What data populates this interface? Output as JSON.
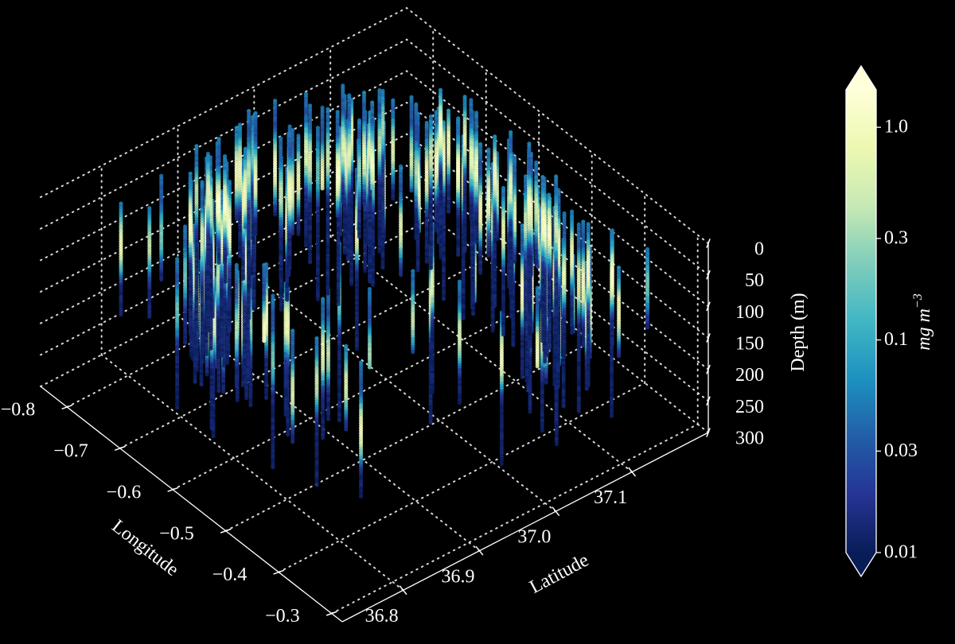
{
  "chart_data": {
    "type": "scatter",
    "projection": "3d",
    "x": {
      "label": "Longitude",
      "range": [
        -0.85,
        -0.28
      ],
      "ticks": [
        -0.8,
        -0.7,
        -0.6,
        -0.5,
        -0.4,
        -0.3
      ],
      "tick_labels": [
        "−0.8",
        "−0.7",
        "−0.6",
        "−0.5",
        "−0.4",
        "−0.3"
      ]
    },
    "y": {
      "label": "Latitude",
      "range": [
        36.72,
        37.2
      ],
      "ticks": [
        36.8,
        36.9,
        37.0,
        37.1
      ],
      "tick_labels": [
        "36.8",
        "36.9",
        "37.0",
        "37.1"
      ]
    },
    "z": {
      "label": "Depth (m)",
      "range": [
        0,
        300
      ],
      "ticks": [
        0,
        50,
        100,
        150,
        200,
        250,
        300
      ],
      "tick_labels": [
        "0",
        "50",
        "100",
        "150",
        "200",
        "250",
        "300"
      ],
      "inverted": true
    },
    "colorbar": {
      "label": "mg m⁻³",
      "label_base": "mg m",
      "label_exp": "−3",
      "scale": "log",
      "range": [
        0.01,
        1.5
      ],
      "ticks": [
        1.0,
        0.3,
        0.1,
        0.03,
        0.01
      ],
      "tick_labels": [
        "1.0",
        "0.3",
        "0.1",
        "0.03",
        "0.01"
      ],
      "extend": "both",
      "colormap": "YlGnBu_r",
      "colors": [
        "#081d58",
        "#253494",
        "#225ea8",
        "#1d91c0",
        "#41b6c4",
        "#7fcdbb",
        "#c7e9b4",
        "#edf8b1",
        "#ffffd9"
      ]
    },
    "grid": true,
    "background": "#000000",
    "description_of_marks": "glider profile casts: vertical columns of points colored by chlorophyll concentration (log scale), high values (~0.3-1.0) forming a subsurface layer near 50-120 m, low values (~0.01-0.03) at depth"
  }
}
